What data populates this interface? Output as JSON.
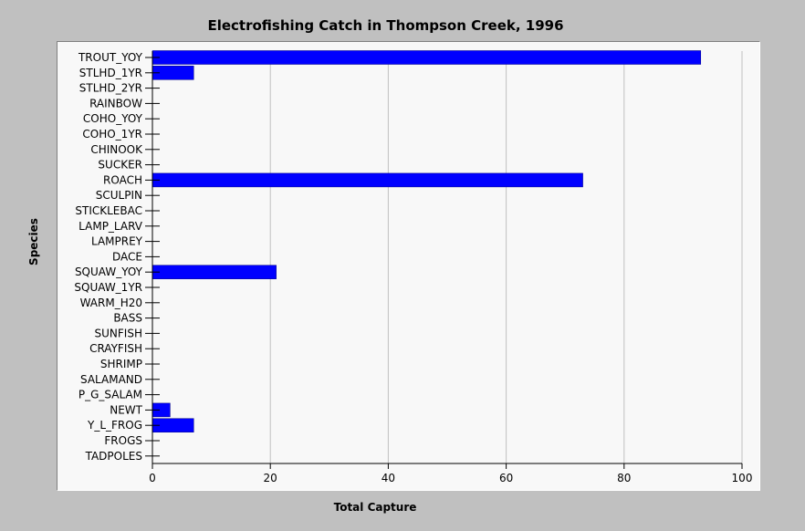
{
  "chart_data": {
    "type": "bar",
    "orientation": "horizontal",
    "title": "Electrofishing Catch in Thompson Creek, 1996",
    "xlabel": "Total Capture",
    "ylabel": "Species",
    "xlim": [
      0,
      100
    ],
    "xticks": [
      0,
      20,
      40,
      60,
      80,
      100
    ],
    "grid": "vertical",
    "bar_color": "#0000ff",
    "categories": [
      "TROUT_YOY",
      "STLHD_1YR",
      "STLHD_2YR",
      "RAINBOW",
      "COHO_YOY",
      "COHO_1YR",
      "CHINOOK",
      "SUCKER",
      "ROACH",
      "SCULPIN",
      "STICKLEBAC",
      "LAMP_LARV",
      "LAMPREY",
      "DACE",
      "SQUAW_YOY",
      "SQUAW_1YR",
      "WARM_H20",
      "BASS",
      "SUNFISH",
      "CRAYFISH",
      "SHRIMP",
      "SALAMAND",
      "P_G_SALAM",
      "NEWT",
      "Y_L_FROG",
      "FROGS",
      "TADPOLES"
    ],
    "values": [
      93,
      7,
      0,
      0,
      0,
      0,
      0,
      0,
      73,
      0,
      0,
      0,
      0,
      0,
      21,
      0,
      0,
      0,
      0,
      0,
      0,
      0,
      0,
      3,
      7,
      0,
      0
    ]
  }
}
